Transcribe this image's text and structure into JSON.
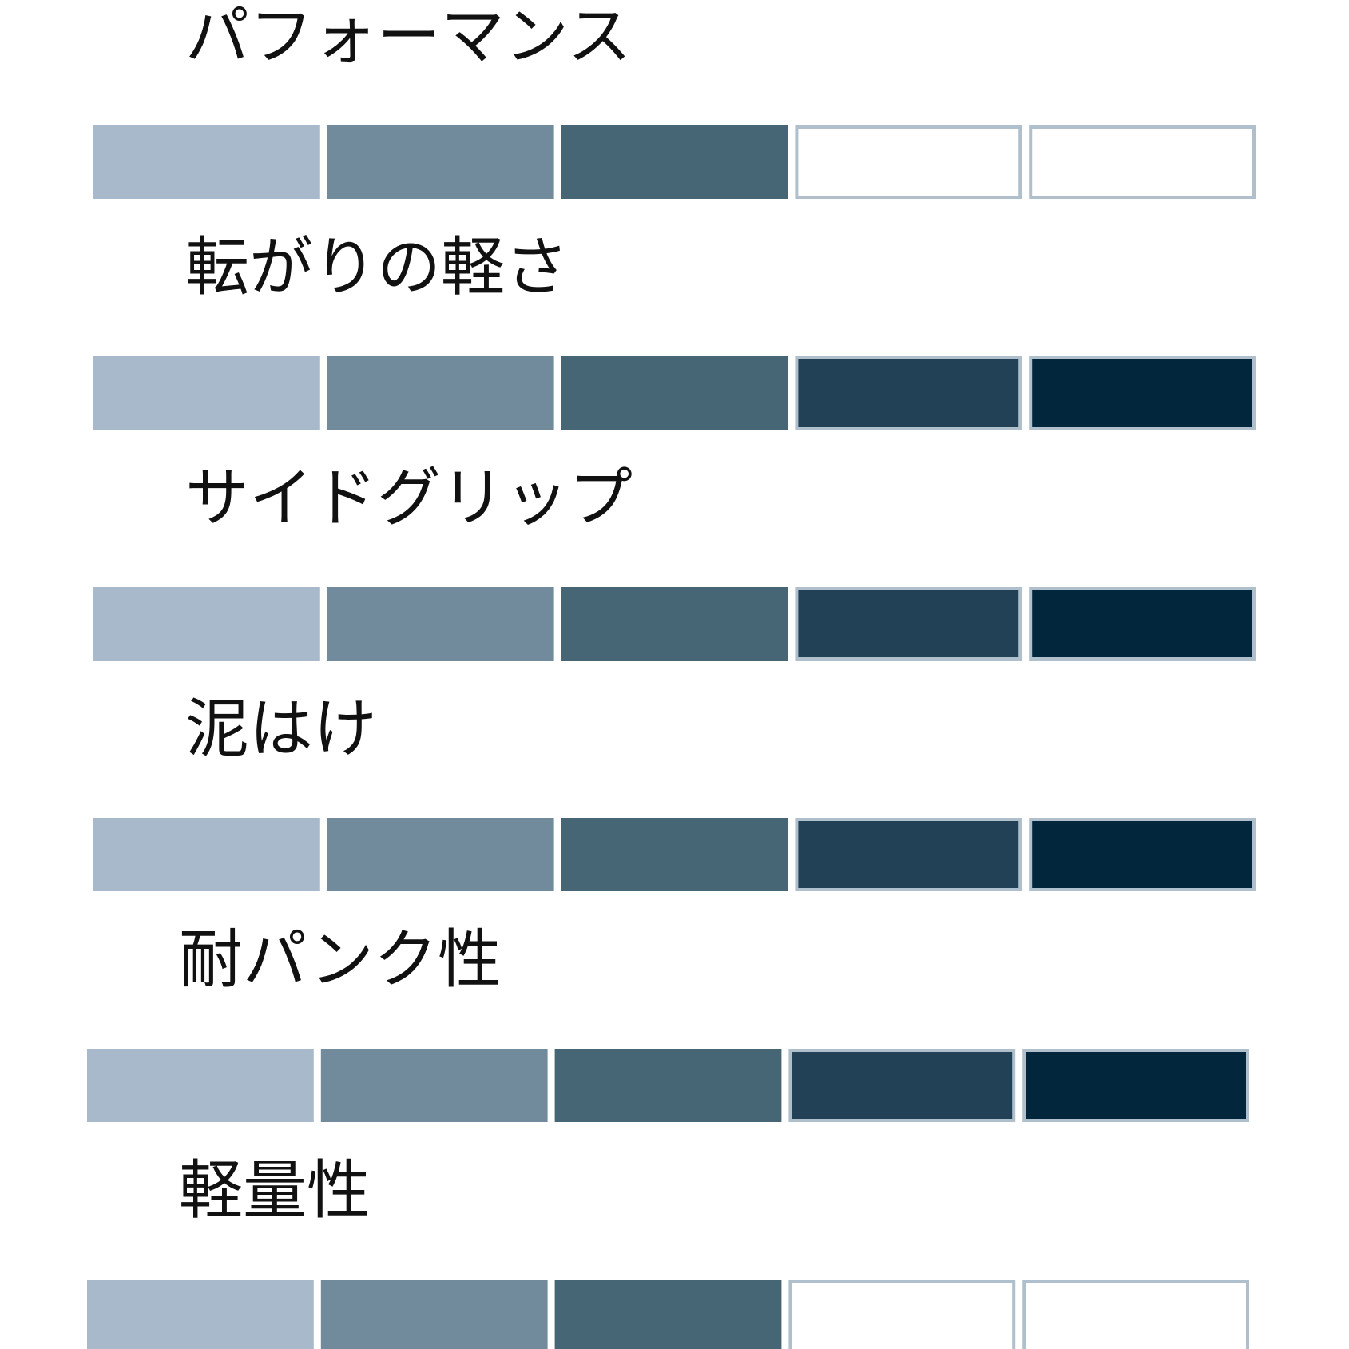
{
  "ratings": [
    {
      "label": "パフォーマンス",
      "value": 3
    },
    {
      "label": "転がりの軽さ",
      "value": 5
    },
    {
      "label": "サイドグリップ",
      "value": 5
    },
    {
      "label": "泥はけ",
      "value": 5
    },
    {
      "label": "耐パンク性",
      "value": 5
    },
    {
      "label": "軽量性",
      "value": 3
    }
  ],
  "max": 5,
  "colors": [
    "#a9b9cc",
    "#728b9c",
    "#476675",
    "#224157",
    "#02273c"
  ],
  "empty_color": "#ffffff",
  "border_color": "#b0bfcc"
}
